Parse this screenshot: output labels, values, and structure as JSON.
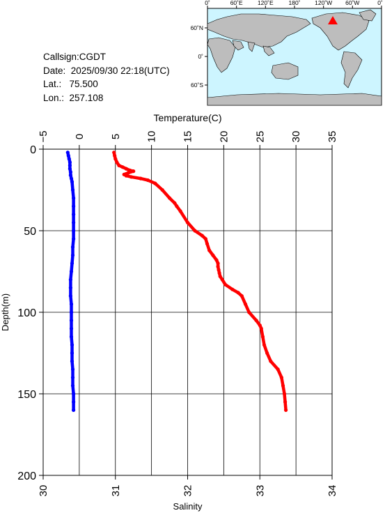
{
  "info": {
    "callsign": "Callsign:CGDT",
    "date": "Date:  2025/09/30 22:18(UTC)",
    "lat": "Lat.:   75.500",
    "lon": "Lon.:  257.108"
  },
  "map": {
    "top_labels": [
      "0˚",
      "60˚E",
      "120˚E",
      "180˚",
      "120˚W",
      "60˚W",
      "0˚"
    ],
    "left_labels": [
      "60˚N",
      "0˚",
      "60˚S"
    ],
    "station_marker_color": "#ff0000",
    "ocean_color": "#cdf5ff",
    "land_color": "#bdbdbd"
  },
  "chart_data": {
    "type": "line",
    "top_axis": {
      "label": "Temperature(C)",
      "range": [
        -5,
        35
      ],
      "ticks": [
        -5,
        0,
        5,
        10,
        15,
        20,
        25,
        30,
        35
      ],
      "tick_labels": [
        "−5",
        "0",
        "5",
        "10",
        "15",
        "20",
        "25",
        "30",
        "35"
      ]
    },
    "bottom_axis": {
      "label": "Salinity",
      "range": [
        30,
        34
      ],
      "ticks": [
        30,
        31,
        32,
        33,
        34
      ],
      "tick_labels": [
        "30",
        "31",
        "32",
        "33",
        "34"
      ]
    },
    "left_axis": {
      "label": "Depth(m)",
      "range": [
        0,
        200
      ],
      "inverted": true,
      "ticks": [
        0,
        50,
        100,
        150,
        200
      ],
      "tick_labels": [
        "0",
        "50",
        "100",
        "150",
        "200"
      ]
    },
    "grid": true,
    "series": [
      {
        "variable": "temperature",
        "axis": "top",
        "color": "#0000ff",
        "points": [
          [
            -1.6,
            2
          ],
          [
            -1.5,
            4
          ],
          [
            -1.4,
            6
          ],
          [
            -1.3,
            8
          ],
          [
            -1.3,
            10
          ],
          [
            -1.3,
            12
          ],
          [
            -1.2,
            14
          ],
          [
            -1.2,
            16
          ],
          [
            -1.1,
            18
          ],
          [
            -1.0,
            20
          ],
          [
            -0.9,
            25
          ],
          [
            -0.8,
            30
          ],
          [
            -0.8,
            35
          ],
          [
            -0.8,
            40
          ],
          [
            -0.8,
            45
          ],
          [
            -0.8,
            50
          ],
          [
            -0.8,
            55
          ],
          [
            -0.9,
            60
          ],
          [
            -0.9,
            65
          ],
          [
            -1.0,
            70
          ],
          [
            -1.1,
            75
          ],
          [
            -1.2,
            80
          ],
          [
            -1.2,
            85
          ],
          [
            -1.2,
            90
          ],
          [
            -1.1,
            95
          ],
          [
            -1.1,
            100
          ],
          [
            -1.1,
            105
          ],
          [
            -1.1,
            110
          ],
          [
            -1.1,
            115
          ],
          [
            -1.0,
            120
          ],
          [
            -1.0,
            125
          ],
          [
            -1.0,
            130
          ],
          [
            -0.9,
            135
          ],
          [
            -0.9,
            140
          ],
          [
            -0.9,
            145
          ],
          [
            -0.8,
            150
          ],
          [
            -0.8,
            155
          ],
          [
            -0.8,
            160
          ]
        ]
      },
      {
        "variable": "salinity",
        "axis": "bottom",
        "color": "#ff0000",
        "points": [
          [
            30.98,
            2
          ],
          [
            30.99,
            4
          ],
          [
            31.0,
            6
          ],
          [
            31.02,
            8
          ],
          [
            31.05,
            10
          ],
          [
            31.1,
            11
          ],
          [
            31.15,
            12
          ],
          [
            31.2,
            13
          ],
          [
            31.25,
            13.5
          ],
          [
            31.18,
            14.5
          ],
          [
            31.12,
            15.5
          ],
          [
            31.15,
            16.3
          ],
          [
            31.22,
            17
          ],
          [
            31.35,
            18
          ],
          [
            31.45,
            19
          ],
          [
            31.55,
            21
          ],
          [
            31.65,
            25
          ],
          [
            31.75,
            30
          ],
          [
            31.82,
            33
          ],
          [
            31.85,
            35
          ],
          [
            31.9,
            38
          ],
          [
            32.0,
            45
          ],
          [
            32.1,
            50
          ],
          [
            32.2,
            53
          ],
          [
            32.25,
            55
          ],
          [
            32.27,
            58
          ],
          [
            32.3,
            62
          ],
          [
            32.35,
            65
          ],
          [
            32.4,
            68
          ],
          [
            32.42,
            70
          ],
          [
            32.42,
            72
          ],
          [
            32.43,
            74
          ],
          [
            32.44,
            76
          ],
          [
            32.45,
            78
          ],
          [
            32.48,
            80
          ],
          [
            32.52,
            83
          ],
          [
            32.62,
            86
          ],
          [
            32.7,
            88
          ],
          [
            32.75,
            90
          ],
          [
            32.8,
            95
          ],
          [
            32.85,
            100
          ],
          [
            32.95,
            105
          ],
          [
            33.0,
            108
          ],
          [
            33.02,
            110
          ],
          [
            33.04,
            115
          ],
          [
            33.06,
            120
          ],
          [
            33.1,
            125
          ],
          [
            33.15,
            130
          ],
          [
            33.25,
            135
          ],
          [
            33.3,
            140
          ],
          [
            33.32,
            145
          ],
          [
            33.34,
            150
          ],
          [
            33.35,
            155
          ],
          [
            33.36,
            160
          ]
        ]
      }
    ]
  }
}
